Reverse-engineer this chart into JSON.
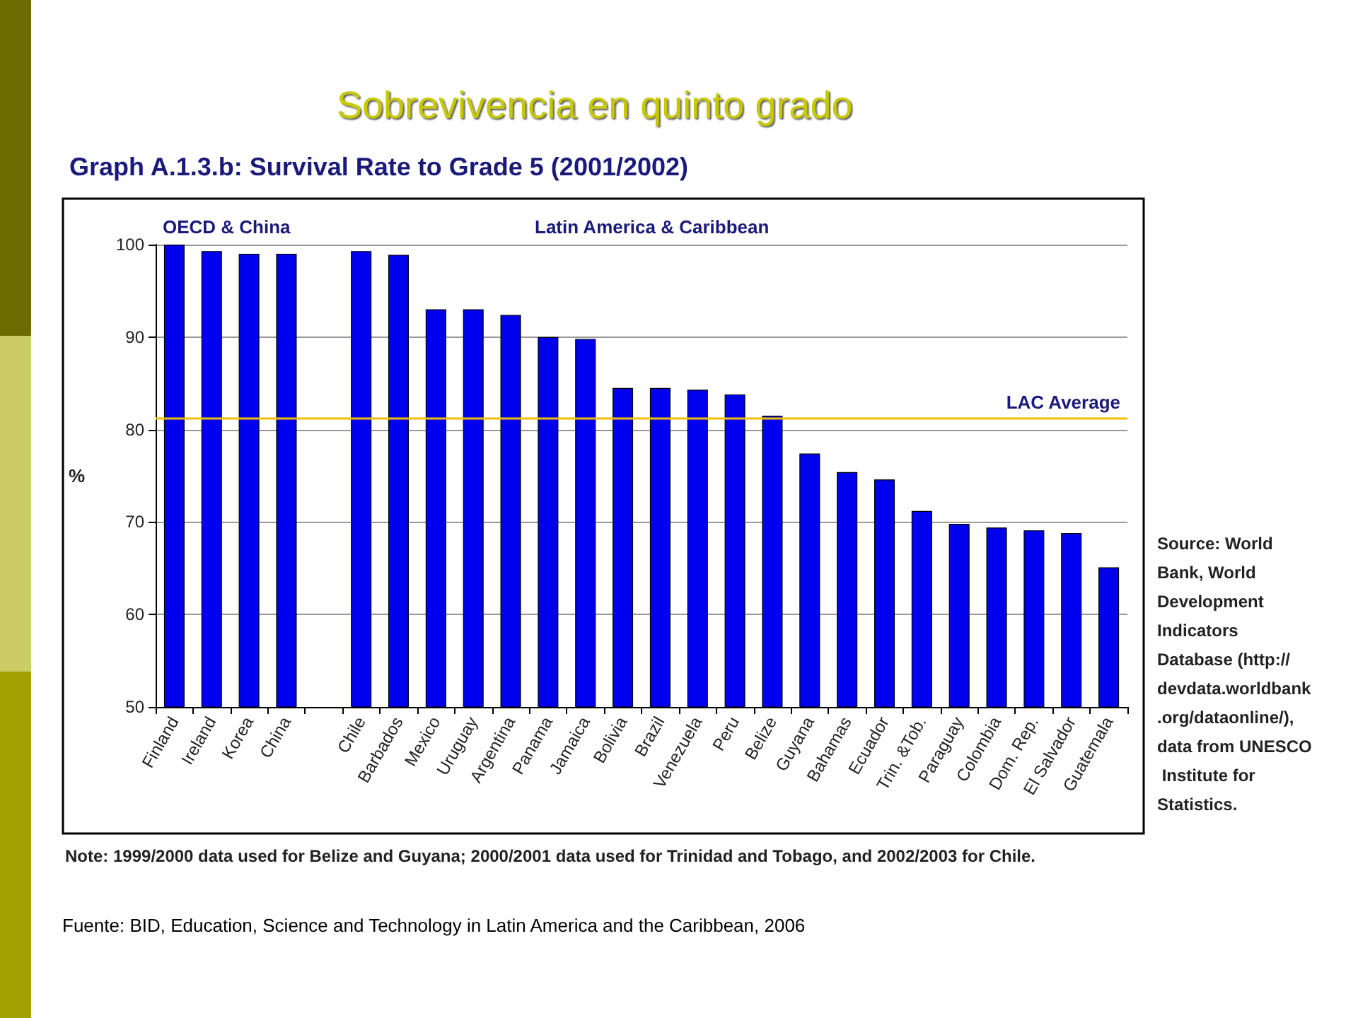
{
  "chart_data": {
    "type": "bar",
    "title": "Sobrevivencia en quinto grado",
    "subtitle": "Graph A.1.3.b: Survival Rate to Grade 5 (2001/2002)",
    "ylabel": "%",
    "categories": [
      "Finland",
      "Ireland",
      "Korea",
      "China",
      null,
      "Chile",
      "Barbados",
      "Mexico",
      "Uruguay",
      "Argentina",
      "Panama",
      "Jamaica",
      "Bolivia",
      "Brazil",
      "Venezuela",
      "Peru",
      "Belize",
      "Guyana",
      "Bahamas",
      "Ecuador",
      "Trin. &Tob.",
      "Paraguay",
      "Colombia",
      "Dom. Rep.",
      "El Salvador",
      "Guatemala"
    ],
    "values": [
      100,
      99.3,
      99.0,
      99.0,
      null,
      99.3,
      98.9,
      93.0,
      93.0,
      92.4,
      90.0,
      89.8,
      84.5,
      84.5,
      84.3,
      83.8,
      81.5,
      77.4,
      75.4,
      74.6,
      71.2,
      69.8,
      69.4,
      69.1,
      68.8,
      65.1
    ],
    "color": "#0000ee",
    "ylim": [
      50,
      100
    ],
    "yticks": [
      50,
      60,
      70,
      80,
      90,
      100
    ],
    "grid": "y",
    "ref_lines": [
      {
        "axis": "y",
        "value": 81.2,
        "label": "LAC Average",
        "color": "#f0c000"
      }
    ],
    "annotations": [
      "OECD & China",
      "Latin America & Caribbean",
      "Note: 1999/2000 data used for Belize and Guyana; 2000/2001 data used for Trinidad and Tobago, and 2002/2003 for Chile.",
      "Source: World Bank, World Development Indicators Database (http://devdata.worldbank.org/dataonline/), data from UNESCO Institute for Statistics.",
      "Fuente: BID, Education, Science and Technology in Latin America and the Caribbean, 2006"
    ]
  }
}
